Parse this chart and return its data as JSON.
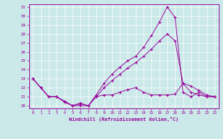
{
  "xlabel": "Windchill (Refroidissement éolien,°C)",
  "xlim": [
    -0.5,
    23.5
  ],
  "ylim": [
    19.7,
    31.3
  ],
  "yticks": [
    20,
    21,
    22,
    23,
    24,
    25,
    26,
    27,
    28,
    29,
    30,
    31
  ],
  "xticks": [
    0,
    1,
    2,
    3,
    4,
    5,
    6,
    7,
    8,
    9,
    10,
    11,
    12,
    13,
    14,
    15,
    16,
    17,
    18,
    19,
    20,
    21,
    22,
    23
  ],
  "bg_color": "#cbe9e9",
  "line_color": "#990099",
  "line1_x": [
    0,
    1,
    2,
    3,
    4,
    5,
    6,
    7,
    8,
    9,
    10,
    11,
    12,
    13,
    14,
    15,
    16,
    17,
    18,
    19,
    20,
    21,
    22,
    23
  ],
  "line1_y": [
    23,
    22,
    21,
    21,
    20.4,
    20,
    20.3,
    20,
    21.2,
    22.5,
    23.5,
    24.3,
    25,
    25.5,
    26.5,
    27.8,
    29.3,
    31,
    29.8,
    21.5,
    21,
    21.5,
    21,
    21
  ],
  "line2_x": [
    0,
    1,
    2,
    3,
    4,
    5,
    6,
    7,
    8,
    9,
    10,
    11,
    12,
    13,
    14,
    15,
    16,
    17,
    18,
    19,
    20,
    21,
    22,
    23
  ],
  "line2_y": [
    23,
    22,
    21,
    21,
    20.5,
    20,
    20.2,
    20,
    21,
    22,
    22.8,
    23.5,
    24.2,
    24.8,
    25.5,
    26.3,
    27.2,
    28,
    27.2,
    22.5,
    21.5,
    21.2,
    21,
    21
  ],
  "line3_x": [
    0,
    1,
    2,
    3,
    4,
    5,
    6,
    7,
    8,
    9,
    10,
    11,
    12,
    13,
    14,
    15,
    16,
    17,
    18,
    19,
    20,
    21,
    22,
    23
  ],
  "line3_y": [
    23,
    22,
    21,
    21,
    20.5,
    20,
    20,
    20,
    21,
    21.2,
    21.2,
    21.5,
    21.8,
    22,
    21.5,
    21.2,
    21.2,
    21.2,
    21.3,
    22.5,
    22.2,
    21.7,
    21.2,
    21
  ]
}
